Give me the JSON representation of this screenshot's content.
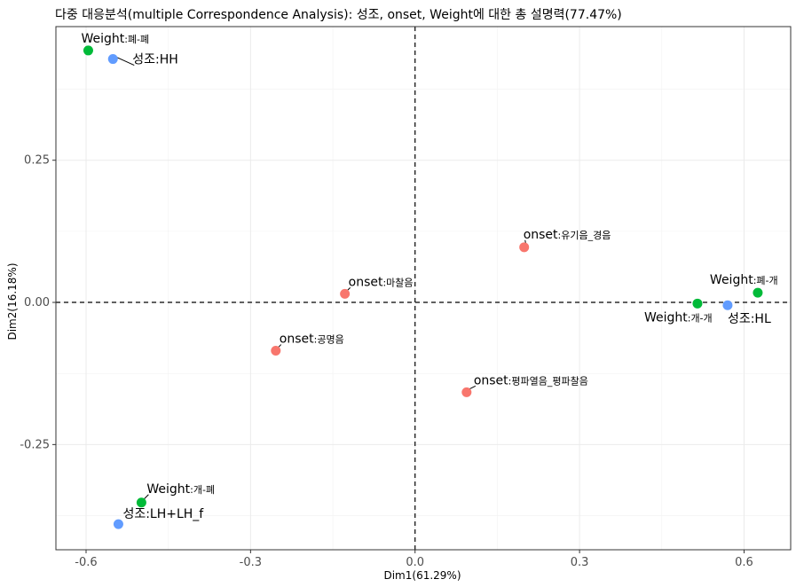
{
  "chart_data": {
    "type": "scatter",
    "title": "다중 대응분석(multiple Correspondence Analysis): 성조, onset, Weight에 대한 총 설명력(77.47%)",
    "xlabel": "Dim1(61.29%)",
    "ylabel": "Dim2(16.18%)",
    "xlim": [
      -0.655,
      0.685
    ],
    "ylim": [
      -0.435,
      0.485
    ],
    "xticks": [
      -0.6,
      -0.3,
      0.0,
      0.3,
      0.6
    ],
    "xtick_labels": [
      "-0.6",
      "-0.3",
      "0.0",
      "0.3",
      "0.6"
    ],
    "yticks": [
      -0.25,
      0.0,
      0.25
    ],
    "ytick_labels": [
      "-0.25",
      "0.00",
      "0.25"
    ],
    "grid": true,
    "reference_lines": {
      "x": 0,
      "y": 0,
      "style": "dashed"
    },
    "colors": {
      "onset": "#F8766D",
      "Weight": "#00BA38",
      "성조": "#619CFF"
    },
    "points": [
      {
        "group": "Weight",
        "label_main": "Weight",
        "label_sub": ":폐-폐",
        "x": -0.596,
        "y": 0.443
      },
      {
        "group": "성조",
        "label_main": "성조:HH",
        "label_sub": "",
        "x": -0.551,
        "y": 0.428
      },
      {
        "group": "onset",
        "label_main": "onset",
        "label_sub": ":유기음_경음",
        "x": 0.199,
        "y": 0.097
      },
      {
        "group": "onset",
        "label_main": "onset",
        "label_sub": ":마찰음",
        "x": -0.128,
        "y": 0.015
      },
      {
        "group": "Weight",
        "label_main": "Weight",
        "label_sub": ":폐-개",
        "x": 0.625,
        "y": 0.017
      },
      {
        "group": "Weight",
        "label_main": "Weight",
        "label_sub": ":개-개",
        "x": 0.515,
        "y": -0.002
      },
      {
        "group": "성조",
        "label_main": "성조:HL",
        "label_sub": "",
        "x": 0.57,
        "y": -0.005
      },
      {
        "group": "onset",
        "label_main": "onset",
        "label_sub": ":공명음",
        "x": -0.254,
        "y": -0.085
      },
      {
        "group": "onset",
        "label_main": "onset",
        "label_sub": ":평파열음_평파찰음",
        "x": 0.094,
        "y": -0.158
      },
      {
        "group": "Weight",
        "label_main": "Weight",
        "label_sub": ":개-폐",
        "x": -0.499,
        "y": -0.352
      },
      {
        "group": "성조",
        "label_main": "성조:LH+LH_f",
        "label_sub": "",
        "x": -0.541,
        "y": -0.39
      }
    ]
  }
}
